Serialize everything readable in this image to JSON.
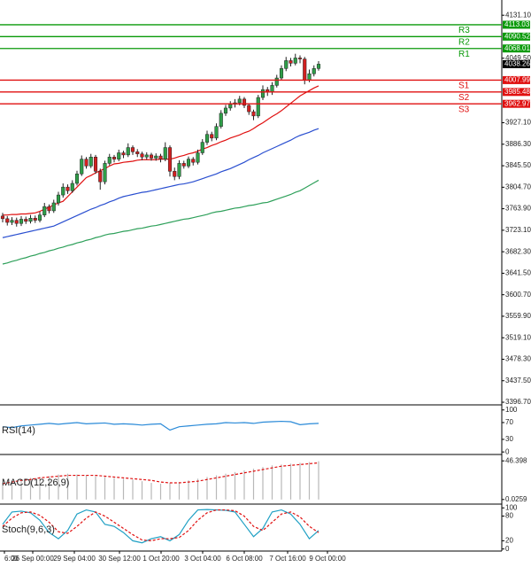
{
  "chart_data": [
    {
      "type": "candlestick",
      "ohlc": [
        [
          3750,
          3756,
          3738,
          3745
        ],
        [
          3745,
          3750,
          3732,
          3738
        ],
        [
          3738,
          3748,
          3733,
          3742
        ],
        [
          3742,
          3747,
          3730,
          3736
        ],
        [
          3736,
          3750,
          3731,
          3744
        ],
        [
          3744,
          3749,
          3735,
          3740
        ],
        [
          3740,
          3752,
          3736,
          3746
        ],
        [
          3746,
          3751,
          3737,
          3742
        ],
        [
          3742,
          3758,
          3738,
          3752
        ],
        [
          3752,
          3775,
          3748,
          3768
        ],
        [
          3768,
          3772,
          3755,
          3760
        ],
        [
          3760,
          3781,
          3756,
          3775
        ],
        [
          3775,
          3796,
          3770,
          3790
        ],
        [
          3790,
          3812,
          3785,
          3805
        ],
        [
          3805,
          3810,
          3792,
          3798
        ],
        [
          3798,
          3818,
          3794,
          3812
        ],
        [
          3812,
          3836,
          3808,
          3830
        ],
        [
          3830,
          3865,
          3826,
          3858
        ],
        [
          3858,
          3862,
          3840,
          3845
        ],
        [
          3845,
          3868,
          3841,
          3862
        ],
        [
          3862,
          3866,
          3830,
          3835
        ],
        [
          3835,
          3840,
          3800,
          3815
        ],
        [
          3815,
          3855,
          3810,
          3850
        ],
        [
          3850,
          3868,
          3846,
          3862
        ],
        [
          3862,
          3866,
          3852,
          3858
        ],
        [
          3858,
          3876,
          3854,
          3870
        ],
        [
          3870,
          3874,
          3860,
          3866
        ],
        [
          3866,
          3888,
          3862,
          3880
        ],
        [
          3880,
          3884,
          3866,
          3872
        ],
        [
          3872,
          3877,
          3862,
          3868
        ],
        [
          3868,
          3872,
          3856,
          3862
        ],
        [
          3862,
          3871,
          3857,
          3866
        ],
        [
          3866,
          3870,
          3855,
          3860
        ],
        [
          3860,
          3869,
          3855,
          3864
        ],
        [
          3864,
          3868,
          3852,
          3858
        ],
        [
          3858,
          3890,
          3854,
          3880
        ],
        [
          3880,
          3884,
          3825,
          3835
        ],
        [
          3835,
          3842,
          3818,
          3825
        ],
        [
          3825,
          3856,
          3820,
          3850
        ],
        [
          3850,
          3855,
          3840,
          3845
        ],
        [
          3845,
          3863,
          3841,
          3858
        ],
        [
          3858,
          3862,
          3846,
          3852
        ],
        [
          3852,
          3876,
          3848,
          3870
        ],
        [
          3870,
          3896,
          3866,
          3890
        ],
        [
          3890,
          3912,
          3885,
          3905
        ],
        [
          3905,
          3910,
          3892,
          3898
        ],
        [
          3898,
          3926,
          3894,
          3920
        ],
        [
          3920,
          3951,
          3916,
          3945
        ],
        [
          3945,
          3961,
          3940,
          3955
        ],
        [
          3955,
          3968,
          3950,
          3962
        ],
        [
          3962,
          3972,
          3956,
          3965
        ],
        [
          3965,
          3978,
          3960,
          3972
        ],
        [
          3972,
          3976,
          3955,
          3960
        ],
        [
          3960,
          3964,
          3942,
          3948
        ],
        [
          3948,
          3952,
          3932,
          3940
        ],
        [
          3940,
          3980,
          3936,
          3975
        ],
        [
          3975,
          3998,
          3970,
          3990
        ],
        [
          3990,
          3995,
          3978,
          3985
        ],
        [
          3985,
          4004,
          3980,
          3998
        ],
        [
          3998,
          4018,
          3994,
          4012
        ],
        [
          4012,
          4036,
          4008,
          4030
        ],
        [
          4030,
          4052,
          4025,
          4045
        ],
        [
          4045,
          4050,
          4034,
          4040
        ],
        [
          4040,
          4058,
          4036,
          4050
        ],
        [
          4050,
          4055,
          4040,
          4048
        ],
        [
          4048,
          4052,
          4000,
          4008
        ],
        [
          4008,
          4028,
          4004,
          4020
        ],
        [
          4020,
          4036,
          4015,
          4030
        ],
        [
          4030,
          4044,
          4026,
          4038.26
        ]
      ],
      "up_color": "#2e9e48",
      "down_color": "#d32020",
      "series": [
        {
          "color": "#e01010",
          "values": [
            3752,
            3752,
            3753,
            3753,
            3754,
            3754,
            3755,
            3756,
            3759,
            3763,
            3767,
            3771,
            3775,
            3778,
            3787,
            3796,
            3805,
            3814,
            3823,
            3827,
            3832,
            3836,
            3840,
            3845,
            3849,
            3850,
            3852,
            3853,
            3854,
            3856,
            3857,
            3857,
            3857,
            3857,
            3858,
            3858,
            3858,
            3860,
            3863,
            3865,
            3868,
            3870,
            3873,
            3877,
            3880,
            3884,
            3887,
            3891,
            3894,
            3898,
            3901,
            3904,
            3908,
            3911,
            3916,
            3922,
            3927,
            3933,
            3939,
            3944,
            3950,
            3957,
            3964,
            3971,
            3978,
            3983,
            3988,
            3993,
            3997
          ]
        },
        {
          "color": "#2a4fd0",
          "values": [
            3709,
            3711,
            3713,
            3715,
            3717,
            3719,
            3721,
            3723,
            3725,
            3727,
            3729,
            3731,
            3735,
            3739,
            3743,
            3747,
            3751,
            3755,
            3759,
            3763,
            3766,
            3770,
            3773,
            3777,
            3780,
            3784,
            3787,
            3789,
            3791,
            3793,
            3795,
            3796,
            3798,
            3800,
            3802,
            3804,
            3806,
            3808,
            3810,
            3811,
            3813,
            3815,
            3818,
            3821,
            3824,
            3827,
            3830,
            3834,
            3837,
            3840,
            3844,
            3848,
            3852,
            3857,
            3861,
            3865,
            3870,
            3874,
            3878,
            3882,
            3886,
            3890,
            3894,
            3899,
            3903,
            3906,
            3909,
            3913,
            3916
          ]
        },
        {
          "color": "#2ea05a",
          "values": [
            3659,
            3661,
            3664,
            3666,
            3669,
            3671,
            3674,
            3676,
            3679,
            3681,
            3684,
            3686,
            3689,
            3691,
            3694,
            3696,
            3699,
            3701,
            3704,
            3706,
            3709,
            3711,
            3714,
            3716,
            3717,
            3719,
            3721,
            3722,
            3724,
            3726,
            3727,
            3729,
            3731,
            3732,
            3734,
            3736,
            3738,
            3740,
            3742,
            3744,
            3745,
            3747,
            3749,
            3751,
            3753,
            3756,
            3758,
            3759,
            3761,
            3763,
            3765,
            3766,
            3768,
            3770,
            3771,
            3773,
            3775,
            3776,
            3779,
            3782,
            3785,
            3788,
            3791,
            3795,
            3798,
            3803,
            3808,
            3813,
            3818
          ]
        }
      ],
      "levels": [
        {
          "label": "R3",
          "value": 4113.03,
          "color": "#0a9a0a"
        },
        {
          "label": "R2",
          "value": 4090.52,
          "color": "#0a9a0a"
        },
        {
          "label": "R1",
          "value": 4068.01,
          "color": "#0a9a0a"
        },
        {
          "label": "S1",
          "value": 4007.99,
          "color": "#e01010"
        },
        {
          "label": "S2",
          "value": 3985.48,
          "color": "#e01010"
        },
        {
          "label": "S3",
          "value": 3962.97,
          "color": "#e01010"
        }
      ],
      "last_price": 4038.26,
      "ylim": [
        3391.7,
        4160
      ],
      "yticks": [
        {
          "value": 4131.1,
          "label": "4131.10"
        },
        {
          "value": 4049.5,
          "label": "4049.50"
        },
        {
          "value": 3927.1,
          "label": "3927.10"
        },
        {
          "value": 3886.3,
          "label": "3886.30"
        },
        {
          "value": 3845.5,
          "label": "3845.50"
        },
        {
          "value": 3804.7,
          "label": "3804.70"
        },
        {
          "value": 3763.9,
          "label": "3763.90"
        },
        {
          "value": 3723.1,
          "label": "3723.10"
        },
        {
          "value": 3682.3,
          "label": "3682.30"
        },
        {
          "value": 3641.5,
          "label": "3641.50"
        },
        {
          "value": 3600.7,
          "label": "3600.70"
        },
        {
          "value": 3559.9,
          "label": "3559.90"
        },
        {
          "value": 3519.1,
          "label": "3519.10"
        },
        {
          "value": 3478.3,
          "label": "3478.30"
        },
        {
          "value": 3437.5,
          "label": "3437.50"
        },
        {
          "value": 3396.7,
          "label": "3396.70"
        }
      ],
      "x_labels": [
        "6:00",
        "26 Sep 00:00",
        "29 Sep 04:00",
        "30 Sep 12:00",
        "1 Oct 20:00",
        "3 Oct 04:00",
        "6 Oct 08:00",
        "7 Oct 16:00",
        "9 Oct 00:00"
      ]
    },
    {
      "type": "rsi",
      "label": "RSI(14)",
      "color": "#2a8ad8",
      "values": [
        60,
        58,
        62,
        64,
        66,
        68,
        66,
        68,
        70,
        67,
        68,
        69,
        66,
        67,
        66,
        64,
        66,
        67,
        52,
        60,
        62,
        64,
        66,
        67,
        70,
        69,
        70,
        68,
        71,
        72,
        73,
        72,
        65,
        67,
        68
      ],
      "ylim": [
        -6,
        110
      ],
      "yticks": [
        100,
        70,
        30,
        0
      ]
    },
    {
      "type": "macd",
      "label": "MACD(12,26,9)",
      "hist_color": "#b8b8b8",
      "signal_color": "#e01010",
      "histogram": [
        20,
        22,
        24,
        26,
        27,
        28,
        30,
        31,
        30,
        29,
        28,
        27,
        26,
        25,
        24,
        22,
        20,
        19,
        20,
        21,
        23,
        25,
        27,
        29,
        31,
        33,
        35,
        37,
        39,
        41,
        42,
        43,
        44,
        45,
        46
      ],
      "signal": [
        19,
        21,
        23,
        24,
        26,
        27,
        28,
        29,
        29,
        29,
        29,
        28,
        27,
        26,
        25,
        24,
        23,
        21,
        20,
        20,
        21,
        22,
        24,
        26,
        28,
        30,
        32,
        34,
        36,
        38,
        40,
        41,
        42,
        43,
        44
      ],
      "ylim": [
        -5.5,
        53
      ],
      "yticks": [
        46.398,
        0.0259
      ]
    },
    {
      "type": "stoch",
      "label": "Stoch(9,6,3)",
      "series": [
        {
          "color": "#1fa0c4",
          "values": [
            60,
            90,
            92,
            88,
            70,
            40,
            25,
            45,
            85,
            95,
            90,
            60,
            55,
            40,
            20,
            15,
            25,
            30,
            20,
            35,
            70,
            95,
            96,
            95,
            94,
            90,
            60,
            30,
            50,
            90,
            95,
            85,
            60,
            25,
            45
          ]
        },
        {
          "color": "#e01010",
          "dash": true,
          "values": [
            55,
            75,
            88,
            90,
            82,
            65,
            42,
            38,
            55,
            75,
            90,
            80,
            65,
            50,
            35,
            22,
            20,
            25,
            25,
            28,
            45,
            70,
            88,
            95,
            95,
            93,
            80,
            55,
            45,
            65,
            85,
            90,
            78,
            55,
            40
          ]
        }
      ],
      "ylim": [
        -5,
        107
      ],
      "yticks": [
        100,
        80,
        20,
        0
      ]
    }
  ]
}
